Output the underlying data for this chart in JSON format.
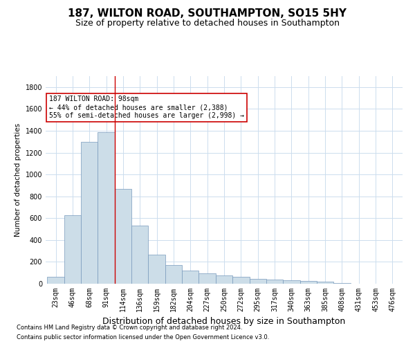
{
  "title": "187, WILTON ROAD, SOUTHAMPTON, SO15 5HY",
  "subtitle": "Size of property relative to detached houses in Southampton",
  "xlabel": "Distribution of detached houses by size in Southampton",
  "ylabel": "Number of detached properties",
  "bar_color": "#ccdde8",
  "bar_edge_color": "#7799bb",
  "bar_width": 1.0,
  "categories": [
    "23sqm",
    "46sqm",
    "68sqm",
    "91sqm",
    "114sqm",
    "136sqm",
    "159sqm",
    "182sqm",
    "204sqm",
    "227sqm",
    "250sqm",
    "272sqm",
    "295sqm",
    "317sqm",
    "340sqm",
    "363sqm",
    "385sqm",
    "408sqm",
    "431sqm",
    "453sqm",
    "476sqm"
  ],
  "values": [
    65,
    630,
    1300,
    1390,
    870,
    530,
    265,
    170,
    120,
    95,
    75,
    65,
    45,
    35,
    30,
    25,
    20,
    5,
    3,
    2,
    1
  ],
  "ylim": [
    0,
    1900
  ],
  "yticks": [
    0,
    200,
    400,
    600,
    800,
    1000,
    1200,
    1400,
    1600,
    1800
  ],
  "red_line_x": 3.5,
  "annotation_text": "187 WILTON ROAD: 98sqm\n← 44% of detached houses are smaller (2,388)\n55% of semi-detached houses are larger (2,998) →",
  "annotation_box_color": "#ffffff",
  "annotation_box_edge_color": "#cc0000",
  "footnote1": "Contains HM Land Registry data © Crown copyright and database right 2024.",
  "footnote2": "Contains public sector information licensed under the Open Government Licence v3.0.",
  "bg_color": "#ffffff",
  "grid_color": "#ccddee",
  "title_fontsize": 11,
  "subtitle_fontsize": 9,
  "xlabel_fontsize": 9,
  "ylabel_fontsize": 7.5,
  "tick_fontsize": 7,
  "annotation_fontsize": 7,
  "footnote_fontsize": 6
}
